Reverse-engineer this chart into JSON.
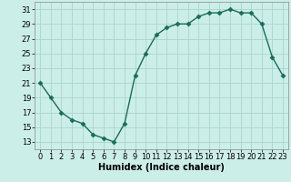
{
  "x": [
    0,
    1,
    2,
    3,
    4,
    5,
    6,
    7,
    8,
    9,
    10,
    11,
    12,
    13,
    14,
    15,
    16,
    17,
    18,
    19,
    20,
    21,
    22,
    23
  ],
  "y": [
    21,
    19,
    17,
    16,
    15.5,
    14,
    13.5,
    13,
    15.5,
    22,
    25,
    27.5,
    28.5,
    29,
    29,
    30,
    30.5,
    30.5,
    31,
    30.5,
    30.5,
    29,
    24.5,
    22
  ],
  "line_color": "#1a6b5a",
  "marker": "D",
  "marker_size": 2.5,
  "bg_color": "#cceee8",
  "grid_color": "#aad4ce",
  "xlabel": "Humidex (Indice chaleur)",
  "ylim": [
    12,
    32
  ],
  "xlim": [
    -0.5,
    23.5
  ],
  "yticks": [
    13,
    15,
    17,
    19,
    21,
    23,
    25,
    27,
    29,
    31
  ],
  "xticks": [
    0,
    1,
    2,
    3,
    4,
    5,
    6,
    7,
    8,
    9,
    10,
    11,
    12,
    13,
    14,
    15,
    16,
    17,
    18,
    19,
    20,
    21,
    22,
    23
  ],
  "xlabel_fontsize": 7,
  "tick_fontsize": 6
}
